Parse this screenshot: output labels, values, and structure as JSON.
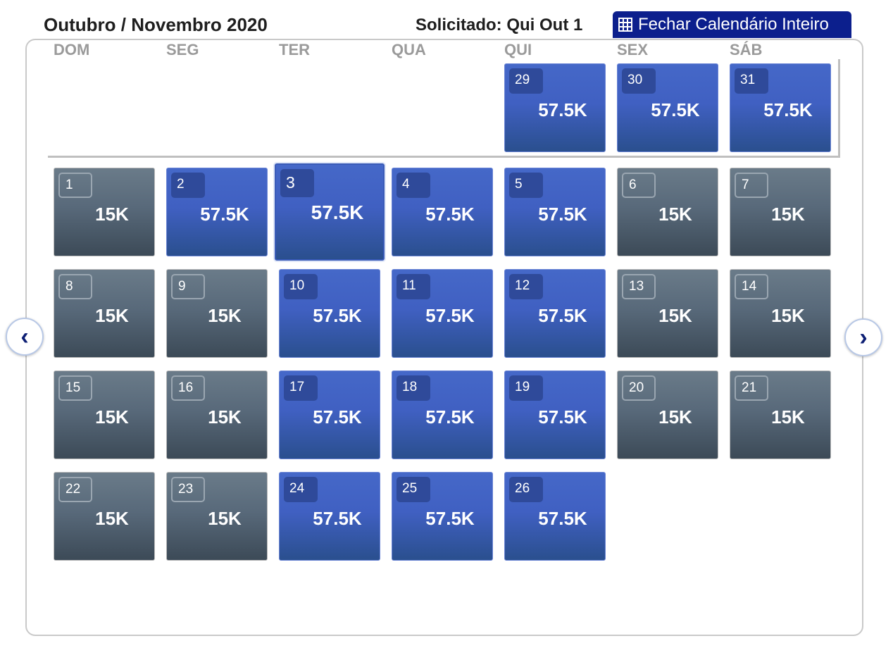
{
  "header": {
    "title": "Outubro / Novembro 2020",
    "requested": "Solicitado: Qui Out 1",
    "close_button": "Fechar Calendário Inteiro"
  },
  "weekdays": [
    "DOM",
    "SEG",
    "TER",
    "QUA",
    "QUI",
    "SEX",
    "SÁB"
  ],
  "previous_month_days": [
    {
      "day": "29",
      "price": "57.5K",
      "style": "blue"
    },
    {
      "day": "30",
      "price": "57.5K",
      "style": "blue"
    },
    {
      "day": "31",
      "price": "57.5K",
      "style": "blue"
    }
  ],
  "month_days": [
    {
      "day": "1",
      "price": "15K",
      "style": "gray"
    },
    {
      "day": "2",
      "price": "57.5K",
      "style": "blue"
    },
    {
      "day": "3",
      "price": "57.5K",
      "style": "blue",
      "selected": true
    },
    {
      "day": "4",
      "price": "57.5K",
      "style": "blue"
    },
    {
      "day": "5",
      "price": "57.5K",
      "style": "blue"
    },
    {
      "day": "6",
      "price": "15K",
      "style": "gray"
    },
    {
      "day": "7",
      "price": "15K",
      "style": "gray"
    },
    {
      "day": "8",
      "price": "15K",
      "style": "gray"
    },
    {
      "day": "9",
      "price": "15K",
      "style": "gray"
    },
    {
      "day": "10",
      "price": "57.5K",
      "style": "blue"
    },
    {
      "day": "11",
      "price": "57.5K",
      "style": "blue"
    },
    {
      "day": "12",
      "price": "57.5K",
      "style": "blue"
    },
    {
      "day": "13",
      "price": "15K",
      "style": "gray"
    },
    {
      "day": "14",
      "price": "15K",
      "style": "gray"
    },
    {
      "day": "15",
      "price": "15K",
      "style": "gray"
    },
    {
      "day": "16",
      "price": "15K",
      "style": "gray"
    },
    {
      "day": "17",
      "price": "57.5K",
      "style": "blue"
    },
    {
      "day": "18",
      "price": "57.5K",
      "style": "blue"
    },
    {
      "day": "19",
      "price": "57.5K",
      "style": "blue"
    },
    {
      "day": "20",
      "price": "15K",
      "style": "gray"
    },
    {
      "day": "21",
      "price": "15K",
      "style": "gray"
    },
    {
      "day": "22",
      "price": "15K",
      "style": "gray"
    },
    {
      "day": "23",
      "price": "15K",
      "style": "gray"
    },
    {
      "day": "24",
      "price": "57.5K",
      "style": "blue"
    },
    {
      "day": "25",
      "price": "57.5K",
      "style": "blue"
    },
    {
      "day": "26",
      "price": "57.5K",
      "style": "blue"
    }
  ],
  "nav": {
    "prev_icon": "chevron-left-icon",
    "next_icon": "chevron-right-icon"
  },
  "colors": {
    "header_button": "#0c1f8d",
    "tile_blue": "#4060c2",
    "tile_gray": "#5a6b7b"
  }
}
